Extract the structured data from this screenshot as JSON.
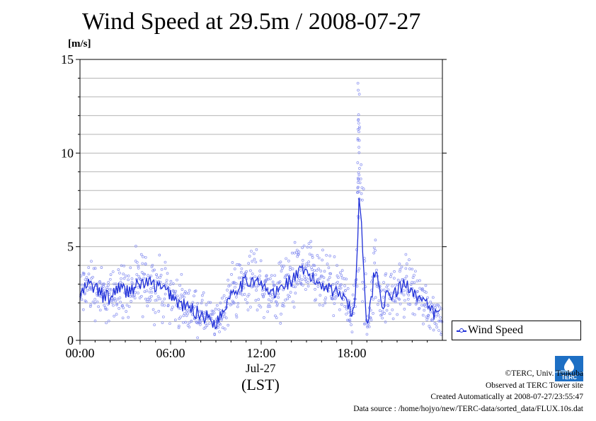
{
  "chart_data": {
    "type": "scatter",
    "title": "Wind Speed at 29.5m / 2008-07-27",
    "ylabel": "[m/s]",
    "xlabel": "(LST)",
    "date_label": "Jul-27",
    "ylim": [
      0,
      15
    ],
    "xlim": [
      0,
      24
    ],
    "y_ticks": [
      "0",
      "5",
      "10",
      "15"
    ],
    "x_ticks": [
      "00:00",
      "06:00",
      "12:00",
      "18:00"
    ],
    "grid": true,
    "legend_position": "bottom-right",
    "series": [
      {
        "name": "Wind Speed",
        "color": "#1f2fd8",
        "x_hours": [
          0,
          0.5,
          1,
          1.5,
          2,
          2.5,
          3,
          3.5,
          4,
          4.5,
          5,
          5.5,
          6,
          6.5,
          7,
          7.5,
          8,
          8.5,
          9,
          9.5,
          10,
          10.5,
          11,
          11.5,
          12,
          12.5,
          13,
          13.5,
          14,
          14.5,
          15,
          15.5,
          16,
          16.5,
          17,
          17.5,
          18,
          18.25,
          18.5,
          18.75,
          19,
          19.25,
          19.5,
          19.75,
          20,
          20.5,
          21,
          21.5,
          22,
          22.5,
          23,
          23.5
        ],
        "values": [
          2.3,
          3.0,
          2.8,
          2.4,
          2.2,
          2.9,
          2.6,
          2.8,
          3.0,
          3.1,
          2.9,
          2.7,
          2.5,
          2.0,
          1.8,
          1.6,
          1.4,
          1.2,
          0.9,
          1.6,
          2.6,
          2.9,
          3.1,
          3.3,
          2.9,
          2.6,
          2.5,
          3.0,
          3.2,
          3.6,
          3.6,
          3.2,
          3.0,
          2.9,
          2.5,
          2.6,
          1.3,
          2.4,
          8.0,
          4.5,
          0.8,
          1.8,
          3.8,
          3.2,
          2.0,
          2.4,
          2.6,
          3.0,
          2.8,
          2.2,
          1.8,
          1.4
        ]
      }
    ]
  },
  "credits": {
    "copyright": "©TERC, Univ. Tsukuba",
    "site": "Observed at TERC Tower site",
    "created": "Created Automatically at 2008-07-27/23:55:47",
    "source": "Data source : /home/hojyo/new/TERC-data/sorted_data/FLUX.10s.dat"
  },
  "logo": {
    "text": "TERC"
  }
}
